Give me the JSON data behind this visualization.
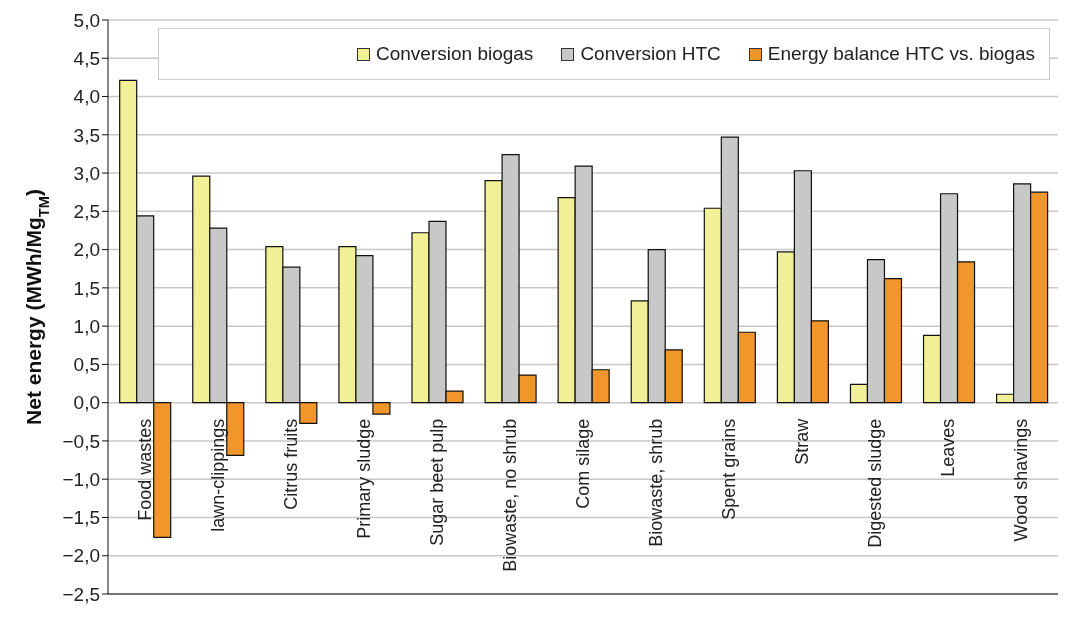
{
  "chart_data": {
    "type": "bar",
    "ylabel": "Net energy (MWh/Mg$_{TM}$)",
    "categories": [
      "Food wastes",
      "lawn-clippings",
      "Citrus fruits",
      "Primary sludge",
      "Sugar beet pulp",
      "Biowaste, no shrub",
      "Com silage",
      "Biowaste, shrub",
      "Spent grains",
      "Straw",
      "Digested sludge",
      "Leaves",
      "Wood shavings"
    ],
    "series": [
      {
        "name": "Conversion biogas",
        "color": "#f2f097",
        "values": [
          4.21,
          2.96,
          2.04,
          2.04,
          2.22,
          2.9,
          2.68,
          1.33,
          2.54,
          1.97,
          0.24,
          0.88,
          0.11
        ]
      },
      {
        "name": "Conversion HTC",
        "color": "#c8c8c8",
        "values": [
          2.44,
          2.28,
          1.77,
          1.92,
          2.37,
          3.24,
          3.09,
          2.0,
          3.47,
          3.03,
          1.87,
          2.73,
          2.86
        ]
      },
      {
        "name": "Energy balance HTC vs. biogas",
        "color": "#f0962a",
        "values": [
          -1.76,
          -0.69,
          -0.27,
          -0.15,
          0.15,
          0.36,
          0.43,
          0.69,
          0.92,
          1.07,
          1.62,
          1.84,
          2.75
        ]
      }
    ],
    "ylim": [
      -2.5,
      5.0
    ],
    "yticks": [
      {
        "value": -2.5,
        "label": "−2,5"
      },
      {
        "value": -2.0,
        "label": "−2,0"
      },
      {
        "value": -1.5,
        "label": "−1,5"
      },
      {
        "value": -1.0,
        "label": "−1,0"
      },
      {
        "value": -0.5,
        "label": "−0,5"
      },
      {
        "value": 0,
        "label": "0,0"
      },
      {
        "value": 0.5,
        "label": "0,5"
      },
      {
        "value": 1.0,
        "label": "1,0"
      },
      {
        "value": 1.5,
        "label": "1,5"
      },
      {
        "value": 2.0,
        "label": "2,0"
      },
      {
        "value": 2.5,
        "label": "2,5"
      },
      {
        "value": 3.0,
        "label": "3,0"
      },
      {
        "value": 3.5,
        "label": "3,5"
      },
      {
        "value": 4.0,
        "label": "4,0"
      },
      {
        "value": 4.5,
        "label": "4,5"
      },
      {
        "value": 5.0,
        "label": "5,0"
      }
    ],
    "grid": "y",
    "legend": "top"
  }
}
